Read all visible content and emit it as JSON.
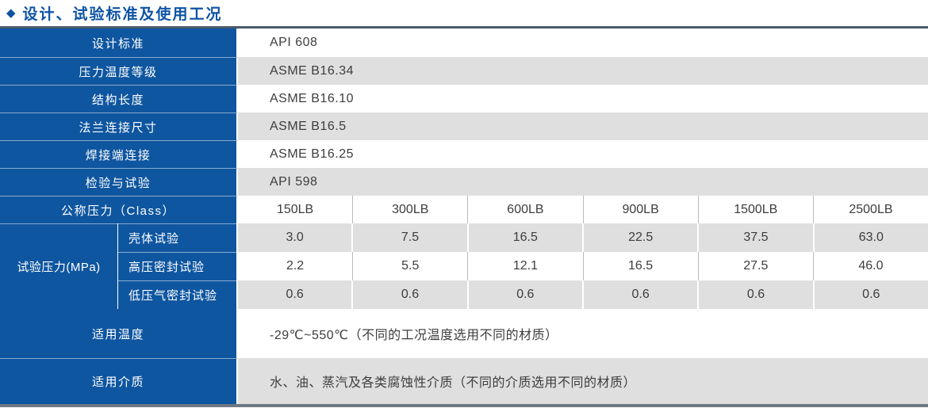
{
  "title": {
    "icon": "◆",
    "text": "设计、试验标准及使用工况"
  },
  "colors": {
    "header_blue": "#0f56a0",
    "title_blue": "#0d53a5",
    "row_gray": "#dfdfdf",
    "top_border": "#4a5a6c",
    "bottom_border": "#6e7883"
  },
  "standards": [
    {
      "label": "设计标准",
      "value": "API 608"
    },
    {
      "label": "压力温度等级",
      "value": "ASME B16.34"
    },
    {
      "label": "结构长度",
      "value": "ASME B16.10"
    },
    {
      "label": "法兰连接尺寸",
      "value": "ASME B16.5"
    },
    {
      "label": "焊接端连接",
      "value": "ASME B16.25"
    },
    {
      "label": "检验与试验",
      "value": "API 598"
    }
  ],
  "pressure": {
    "class_label": "公称压力（Class）",
    "classes": [
      "150LB",
      "300LB",
      "600LB",
      "900LB",
      "1500LB",
      "2500LB"
    ],
    "group_label": "试验压力(MPa)",
    "tests": [
      {
        "label": "壳体试验",
        "values": [
          "3.0",
          "7.5",
          "16.5",
          "22.5",
          "37.5",
          "63.0"
        ]
      },
      {
        "label": "高压密封试验",
        "values": [
          "2.2",
          "5.5",
          "12.1",
          "16.5",
          "27.5",
          "46.0"
        ]
      },
      {
        "label": "低压气密封试验",
        "values": [
          "0.6",
          "0.6",
          "0.6",
          "0.6",
          "0.6",
          "0.6"
        ]
      }
    ]
  },
  "conditions": [
    {
      "label": "适用温度",
      "value": "-29℃~550℃（不同的工况温度选用不同的材质）"
    },
    {
      "label": "适用介质",
      "value": "水、油、蒸汽及各类腐蚀性介质（不同的介质选用不同的材质）"
    }
  ]
}
